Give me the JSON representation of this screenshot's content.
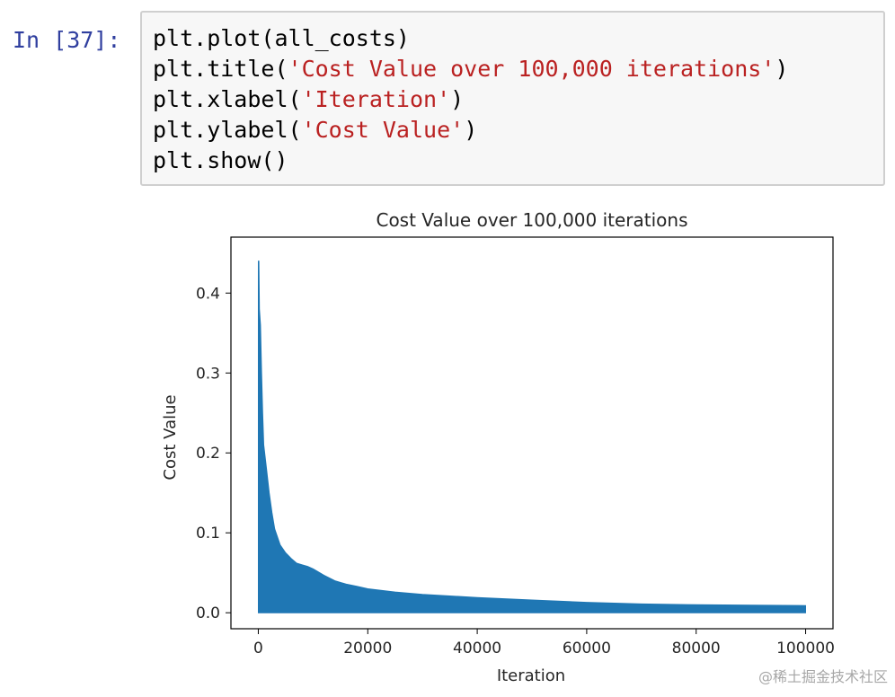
{
  "cell": {
    "prompt": "In [37]:",
    "code_lines": [
      {
        "pre": "plt.plot(all_costs)",
        "str": "",
        "post": ""
      },
      {
        "pre": "plt.title(",
        "str": "'Cost Value over 100,000 iterations'",
        "post": ")"
      },
      {
        "pre": "plt.xlabel(",
        "str": "'Iteration'",
        "post": ")"
      },
      {
        "pre": "plt.ylabel(",
        "str": "'Cost Value'",
        "post": ")"
      },
      {
        "pre": "plt.show()",
        "str": "",
        "post": ""
      }
    ]
  },
  "chart_data": {
    "type": "line",
    "title": "Cost Value over 100,000 iterations",
    "xlabel": "Iteration",
    "ylabel": "Cost Value",
    "xlim": [
      -5000,
      105000
    ],
    "ylim": [
      -0.02,
      0.47
    ],
    "x_ticks": [
      0,
      20000,
      40000,
      60000,
      80000,
      100000
    ],
    "x_tick_labels": [
      "0",
      "20000",
      "40000",
      "60000",
      "80000",
      "100000"
    ],
    "y_ticks": [
      0.0,
      0.1,
      0.2,
      0.3,
      0.4
    ],
    "y_tick_labels": [
      "0.0",
      "0.1",
      "0.2",
      "0.3",
      "0.4"
    ],
    "grid": false,
    "color": "#1f77b4",
    "series": [
      {
        "upper_envelope": {
          "x": [
            0,
            100,
            200,
            400,
            600,
            800,
            1000,
            1500,
            2000,
            2500,
            3000,
            4000,
            5000,
            6000,
            7000,
            8000,
            9000,
            10000,
            12000,
            14000,
            16000,
            18000,
            20000,
            25000,
            30000,
            35000,
            40000,
            50000,
            60000,
            70000,
            80000,
            90000,
            100000
          ],
          "y": [
            0.44,
            0.44,
            0.38,
            0.36,
            0.3,
            0.25,
            0.21,
            0.18,
            0.15,
            0.125,
            0.105,
            0.085,
            0.075,
            0.068,
            0.062,
            0.06,
            0.058,
            0.055,
            0.047,
            0.04,
            0.036,
            0.033,
            0.03,
            0.026,
            0.023,
            0.021,
            0.019,
            0.016,
            0.013,
            0.011,
            0.01,
            0.0095,
            0.009
          ]
        },
        "lower_bound": 0.0
      }
    ]
  },
  "watermark": "@稀土掘金技术社区"
}
